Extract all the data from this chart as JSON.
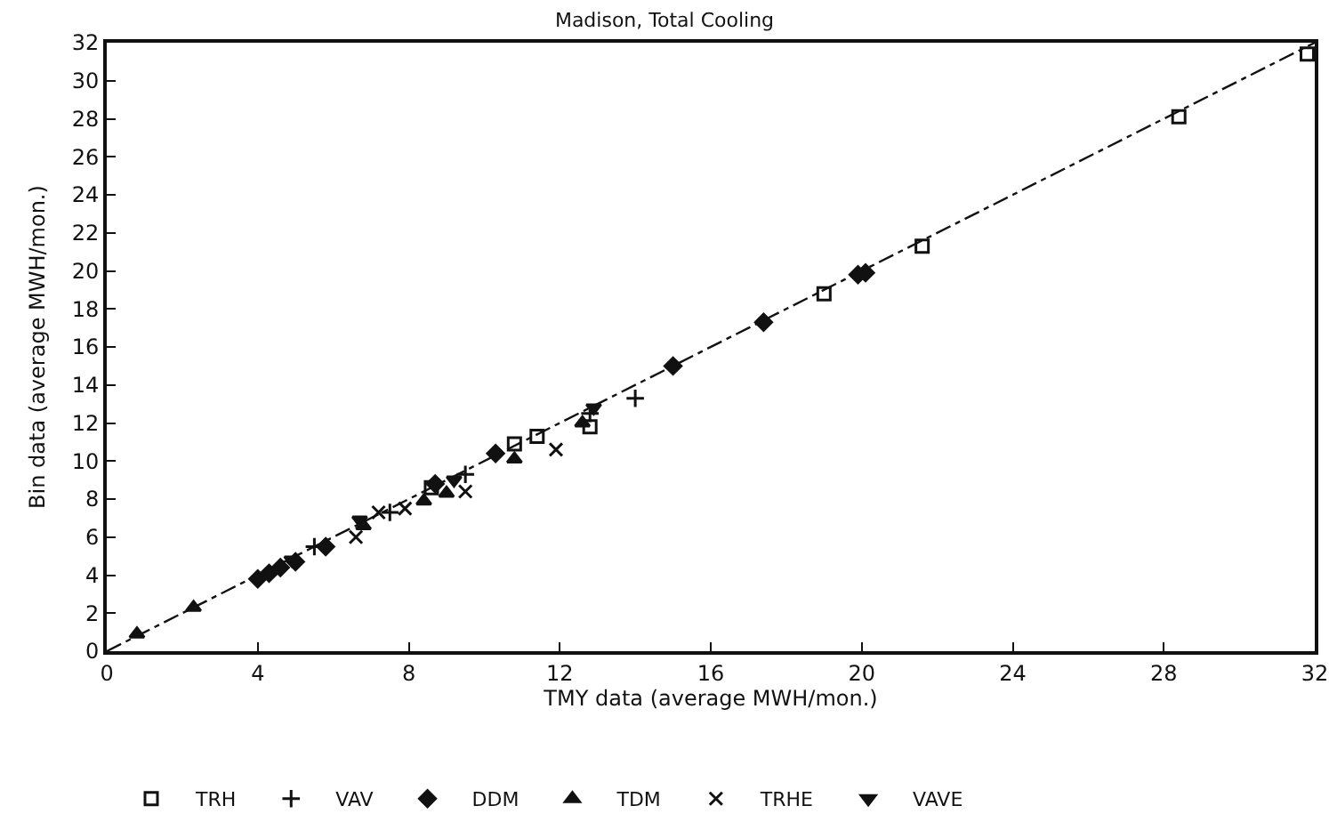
{
  "chart_data": {
    "type": "scatter",
    "title": "Madison, Total Cooling",
    "xlabel": "TMY data (average MWH/mon.)",
    "ylabel": "Bin data (average MWH/mon.)",
    "xlim": [
      0,
      32
    ],
    "xticks": [
      0,
      4,
      8,
      12,
      16,
      20,
      24,
      28,
      32
    ],
    "ylim": [
      0,
      32
    ],
    "yticks": [
      0,
      2,
      4,
      6,
      8,
      10,
      12,
      14,
      16,
      18,
      20,
      22,
      24,
      26,
      28,
      30,
      32
    ],
    "grid": false,
    "legend": "bottom",
    "series": [
      {
        "type": "line",
        "color": "#111111",
        "line_style": "dashed",
        "marker": "none",
        "x": [
          0,
          32
        ],
        "values": [
          0,
          32
        ]
      },
      {
        "name": "TRH",
        "color": "#111111",
        "marker": "square",
        "x": [
          31.8,
          28.4,
          21.6,
          19,
          11.4,
          10.8,
          12.8,
          8.6
        ],
        "values": [
          31.4,
          28.1,
          21.3,
          18.8,
          11.3,
          10.9,
          11.8,
          8.6
        ]
      },
      {
        "name": "VAV",
        "color": "#111111",
        "marker": "cross",
        "x": [
          14,
          12.8,
          9.5,
          7.5,
          5.5
        ],
        "values": [
          13.3,
          12.5,
          9.3,
          7.3,
          5.5
        ]
      },
      {
        "name": "DDM",
        "color": "#111111",
        "marker": "diamond",
        "x": [
          15,
          17.4,
          20.1,
          19.9,
          4,
          4.3,
          4.6,
          5,
          5.8,
          8.7,
          10.3
        ],
        "values": [
          15,
          17.3,
          19.9,
          19.8,
          3.8,
          4.1,
          4.4,
          4.7,
          5.5,
          8.8,
          10.4
        ]
      },
      {
        "name": "TDM",
        "color": "#111111",
        "marker": "triangle",
        "x": [
          0.8,
          2.3,
          8.4,
          9,
          10.8,
          12.6,
          6.8
        ],
        "values": [
          0.9,
          2.3,
          7.9,
          8.3,
          10.1,
          12,
          6.6
        ]
      },
      {
        "name": "TRHE",
        "color": "#111111",
        "marker": "x",
        "x": [
          11.9,
          9.5,
          7.9,
          7.2,
          6.6
        ],
        "values": [
          10.6,
          8.4,
          7.5,
          7.3,
          6
        ]
      },
      {
        "name": "VAVE",
        "color": "#111111",
        "marker": "triangle-down",
        "x": [
          6.7,
          9.2,
          12.9,
          4.9
        ],
        "values": [
          6.9,
          9,
          12.8,
          4.8
        ]
      }
    ]
  }
}
